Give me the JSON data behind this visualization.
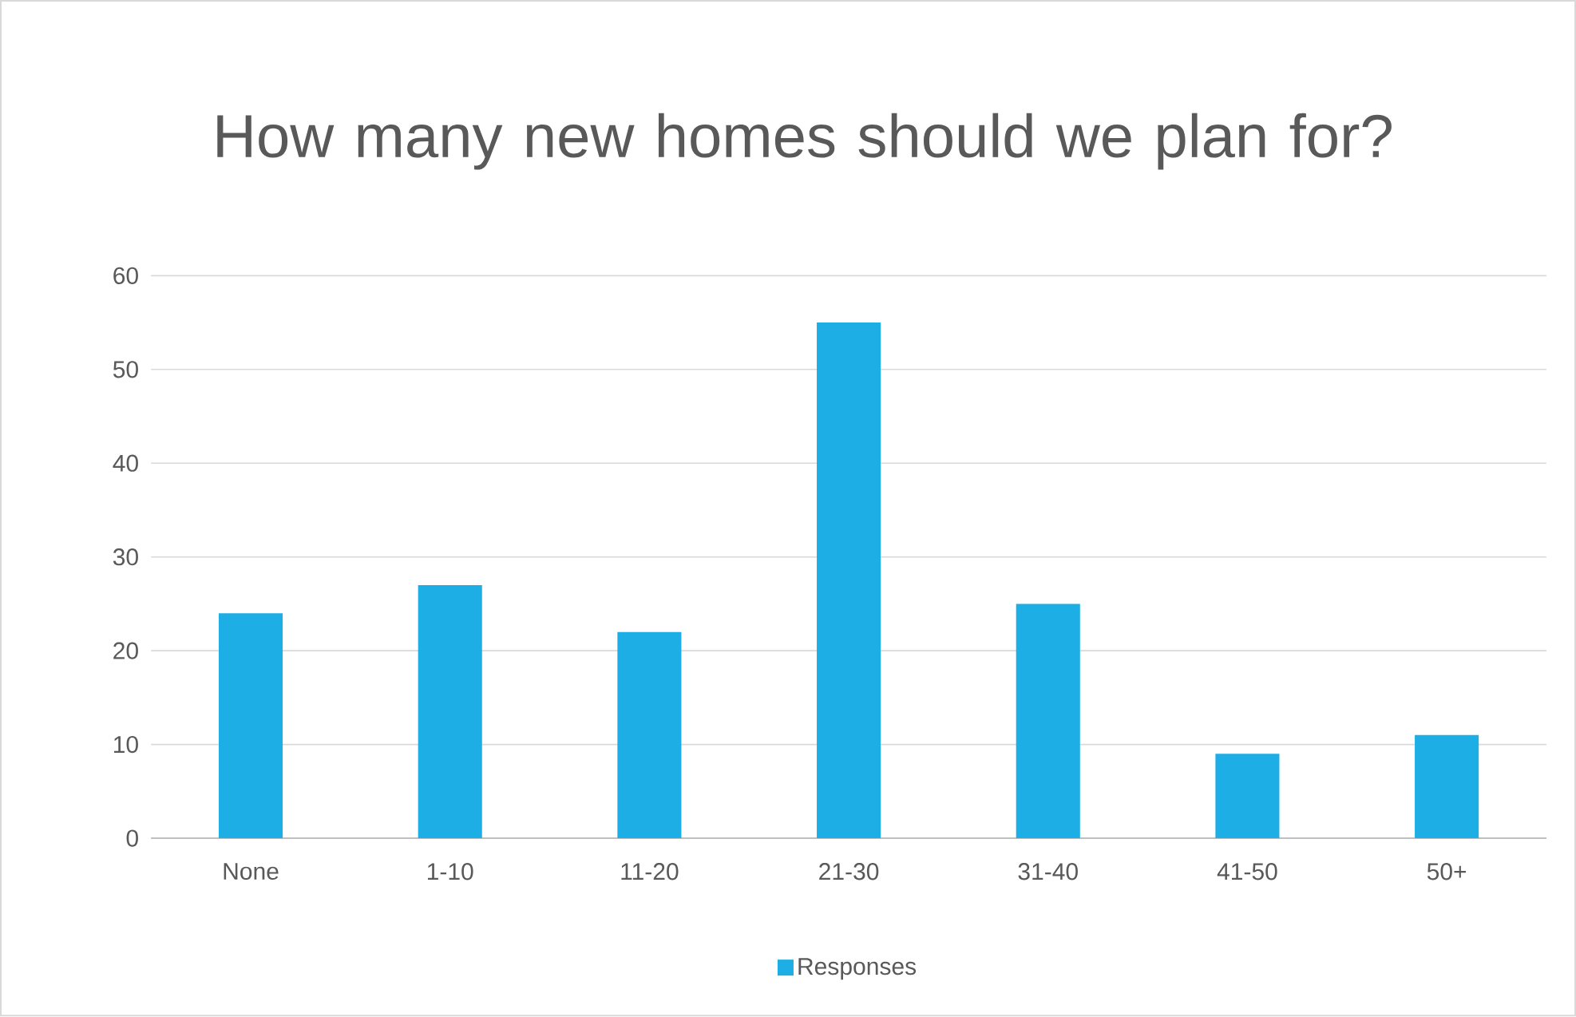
{
  "chart_data": {
    "type": "bar",
    "title": "How many new homes should we plan for?",
    "categories": [
      "None",
      "1-10",
      "11-20",
      "21-30",
      "31-40",
      "41-50",
      "50+"
    ],
    "series": [
      {
        "name": "Responses",
        "color": "#1caee4",
        "values": [
          24,
          27,
          22,
          55,
          25,
          9,
          11
        ]
      }
    ],
    "ylim": [
      0,
      60
    ],
    "yticks": [
      0,
      10,
      20,
      30,
      40,
      50,
      60
    ],
    "grid": "y",
    "legend": "bottom"
  }
}
